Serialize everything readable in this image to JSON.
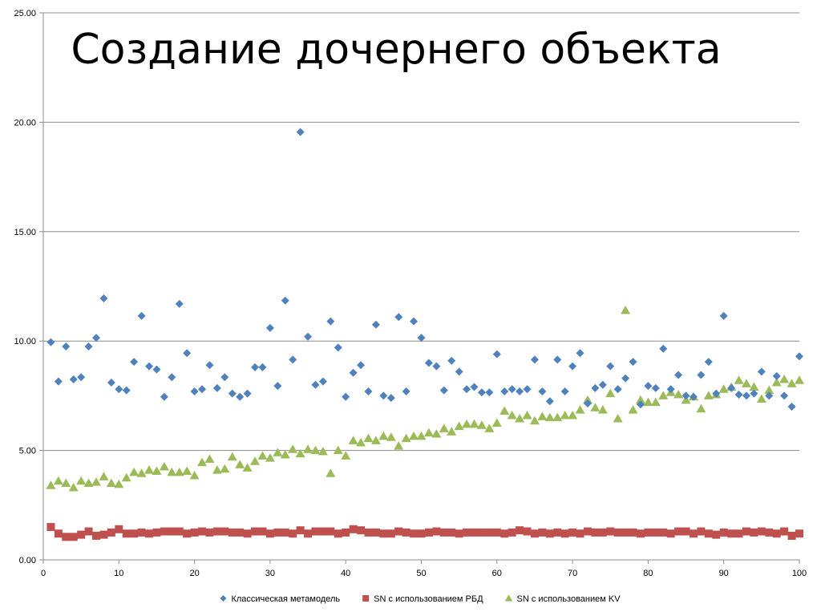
{
  "title": "Создание дочернего объекта",
  "chart_data": {
    "type": "scatter",
    "title": "Создание дочернего объекта",
    "xlabel": "",
    "ylabel": "",
    "xlim": [
      0,
      100
    ],
    "ylim": [
      0,
      25
    ],
    "x_ticks": [
      "0",
      "10",
      "20",
      "30",
      "40",
      "50",
      "60",
      "70",
      "80",
      "90",
      "100"
    ],
    "y_ticks": [
      "0.00",
      "5.00",
      "10.00",
      "15.00",
      "20.00",
      "25.00"
    ],
    "grid": "horizontal",
    "legend_position": "bottom",
    "series": [
      {
        "name": "Классическая метамодель",
        "marker": "diamond",
        "color": "#4f81bd",
        "x": [
          1,
          2,
          3,
          4,
          5,
          6,
          7,
          8,
          9,
          10,
          11,
          12,
          13,
          14,
          15,
          16,
          17,
          18,
          19,
          20,
          21,
          22,
          23,
          24,
          25,
          26,
          27,
          28,
          29,
          30,
          31,
          32,
          33,
          34,
          35,
          36,
          37,
          38,
          39,
          40,
          41,
          42,
          43,
          44,
          45,
          46,
          47,
          48,
          49,
          50,
          51,
          52,
          53,
          54,
          55,
          56,
          57,
          58,
          59,
          60,
          61,
          62,
          63,
          64,
          65,
          66,
          67,
          68,
          69,
          70,
          71,
          72,
          73,
          74,
          75,
          76,
          77,
          78,
          79,
          80,
          81,
          82,
          83,
          84,
          85,
          86,
          87,
          88,
          89,
          90,
          91,
          92,
          93,
          94,
          95,
          96,
          97,
          98,
          99,
          100
        ],
        "y": [
          9.95,
          8.15,
          9.75,
          8.25,
          8.35,
          9.75,
          10.15,
          11.95,
          8.1,
          7.8,
          7.75,
          9.05,
          11.15,
          8.85,
          8.7,
          7.45,
          8.35,
          11.7,
          9.45,
          7.7,
          7.8,
          8.9,
          7.85,
          8.35,
          7.6,
          7.45,
          7.6,
          8.8,
          8.8,
          10.6,
          7.95,
          11.85,
          9.15,
          19.55,
          10.2,
          8.0,
          8.15,
          10.9,
          9.7,
          7.45,
          8.55,
          8.9,
          7.7,
          10.75,
          7.5,
          7.4,
          11.1,
          7.7,
          10.9,
          10.15,
          9.0,
          8.85,
          7.75,
          9.1,
          8.6,
          7.8,
          7.9,
          7.65,
          7.65,
          9.4,
          7.7,
          7.8,
          7.7,
          7.8,
          9.15,
          7.7,
          7.25,
          9.15,
          7.7,
          8.85,
          9.45,
          7.15,
          7.85,
          8.0,
          8.85,
          7.8,
          8.3,
          9.05,
          7.1,
          7.95,
          7.85,
          9.65,
          7.8,
          8.45,
          7.5,
          7.45,
          8.45,
          9.05,
          7.6,
          11.15,
          7.85,
          7.55,
          7.5,
          7.6,
          8.6,
          7.5,
          8.4,
          7.5,
          7.0,
          9.3
        ]
      },
      {
        "name": "SN с использованием РБД",
        "marker": "square",
        "color": "#c0504d",
        "x": [
          1,
          2,
          3,
          4,
          5,
          6,
          7,
          8,
          9,
          10,
          11,
          12,
          13,
          14,
          15,
          16,
          17,
          18,
          19,
          20,
          21,
          22,
          23,
          24,
          25,
          26,
          27,
          28,
          29,
          30,
          31,
          32,
          33,
          34,
          35,
          36,
          37,
          38,
          39,
          40,
          41,
          42,
          43,
          44,
          45,
          46,
          47,
          48,
          49,
          50,
          51,
          52,
          53,
          54,
          55,
          56,
          57,
          58,
          59,
          60,
          61,
          62,
          63,
          64,
          65,
          66,
          67,
          68,
          69,
          70,
          71,
          72,
          73,
          74,
          75,
          76,
          77,
          78,
          79,
          80,
          81,
          82,
          83,
          84,
          85,
          86,
          87,
          88,
          89,
          90,
          91,
          92,
          93,
          94,
          95,
          96,
          97,
          98,
          99,
          100
        ],
        "y": [
          1.5,
          1.2,
          1.05,
          1.05,
          1.15,
          1.3,
          1.1,
          1.15,
          1.25,
          1.4,
          1.2,
          1.2,
          1.25,
          1.2,
          1.25,
          1.3,
          1.3,
          1.3,
          1.2,
          1.25,
          1.3,
          1.25,
          1.3,
          1.3,
          1.25,
          1.25,
          1.2,
          1.3,
          1.3,
          1.2,
          1.25,
          1.25,
          1.2,
          1.35,
          1.2,
          1.3,
          1.3,
          1.3,
          1.2,
          1.25,
          1.4,
          1.35,
          1.25,
          1.25,
          1.2,
          1.2,
          1.3,
          1.25,
          1.2,
          1.2,
          1.25,
          1.3,
          1.25,
          1.25,
          1.2,
          1.25,
          1.25,
          1.25,
          1.25,
          1.25,
          1.2,
          1.25,
          1.35,
          1.3,
          1.2,
          1.25,
          1.2,
          1.25,
          1.2,
          1.25,
          1.2,
          1.3,
          1.25,
          1.25,
          1.3,
          1.25,
          1.25,
          1.25,
          1.2,
          1.25,
          1.25,
          1.25,
          1.2,
          1.3,
          1.3,
          1.2,
          1.3,
          1.2,
          1.15,
          1.25,
          1.2,
          1.2,
          1.3,
          1.25,
          1.3,
          1.25,
          1.2,
          1.3,
          1.1,
          1.2
        ]
      },
      {
        "name": "SN с использованием KV",
        "marker": "triangle",
        "color": "#9bbb59",
        "x": [
          1,
          2,
          3,
          4,
          5,
          6,
          7,
          8,
          9,
          10,
          11,
          12,
          13,
          14,
          15,
          16,
          17,
          18,
          19,
          20,
          21,
          22,
          23,
          24,
          25,
          26,
          27,
          28,
          29,
          30,
          31,
          32,
          33,
          34,
          35,
          36,
          37,
          38,
          39,
          40,
          41,
          42,
          43,
          44,
          45,
          46,
          47,
          48,
          49,
          50,
          51,
          52,
          53,
          54,
          55,
          56,
          57,
          58,
          59,
          60,
          61,
          62,
          63,
          64,
          65,
          66,
          67,
          68,
          69,
          70,
          71,
          72,
          73,
          74,
          75,
          76,
          77,
          78,
          79,
          80,
          81,
          82,
          83,
          84,
          85,
          86,
          87,
          88,
          89,
          90,
          91,
          92,
          93,
          94,
          95,
          96,
          97,
          98,
          99,
          100
        ],
        "y": [
          3.4,
          3.6,
          3.5,
          3.3,
          3.6,
          3.5,
          3.55,
          3.8,
          3.5,
          3.45,
          3.75,
          4.0,
          3.95,
          4.1,
          4.05,
          4.25,
          4.0,
          4.0,
          4.05,
          3.85,
          4.45,
          4.6,
          4.1,
          4.15,
          4.7,
          4.35,
          4.2,
          4.5,
          4.75,
          4.65,
          4.9,
          4.8,
          5.05,
          4.85,
          5.05,
          5.0,
          4.95,
          3.95,
          5.0,
          4.75,
          5.45,
          5.35,
          5.55,
          5.45,
          5.65,
          5.6,
          5.2,
          5.55,
          5.65,
          5.65,
          5.8,
          5.75,
          6.0,
          5.85,
          6.1,
          6.2,
          6.2,
          6.15,
          6.0,
          6.25,
          6.8,
          6.6,
          6.45,
          6.6,
          6.35,
          6.55,
          6.5,
          6.5,
          6.6,
          6.6,
          6.85,
          7.3,
          6.95,
          6.85,
          7.6,
          6.45,
          11.4,
          6.85,
          7.3,
          7.2,
          7.2,
          7.5,
          7.65,
          7.55,
          7.3,
          7.45,
          6.9,
          7.5,
          7.55,
          7.8,
          7.9,
          8.2,
          8.05,
          7.9,
          7.35,
          7.75,
          8.1,
          8.25,
          8.05,
          8.2
        ]
      }
    ]
  }
}
